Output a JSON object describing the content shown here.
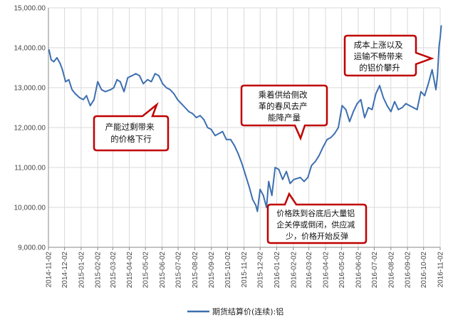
{
  "chart_data": {
    "type": "line",
    "title": "",
    "xlabel": "",
    "ylabel": "",
    "ylim": [
      9000,
      15000
    ],
    "y_ticks": [
      "9,000.00",
      "10,000.00",
      "11,000.00",
      "12,000.00",
      "13,000.00",
      "14,000.00",
      "15,000.00"
    ],
    "y_tick_values": [
      9000,
      10000,
      11000,
      12000,
      13000,
      14000,
      15000
    ],
    "x_ticks": [
      "2014-11-02",
      "2014-12-02",
      "2015-01-02",
      "2015-02-02",
      "2015-03-02",
      "2015-04-02",
      "2015-05-02",
      "2015-06-02",
      "2015-07-02",
      "2015-08-02",
      "2015-09-02",
      "2015-10-02",
      "2015-11-02",
      "2015-12-02",
      "2016-01-02",
      "2016-02-02",
      "2016-03-02",
      "2016-04-02",
      "2016-05-02",
      "2016-06-02",
      "2016-07-02",
      "2016-08-02",
      "2016-09-02",
      "2016-10-02",
      "2016-11-02"
    ],
    "grid": true,
    "legend_position": "bottom",
    "series": [
      {
        "name": "期货结算价(连续):铝",
        "color": "#3d6fb0",
        "x": [
          "2014-11-03",
          "2014-11-07",
          "2014-11-12",
          "2014-11-18",
          "2014-11-24",
          "2014-11-28",
          "2014-12-04",
          "2014-12-10",
          "2014-12-16",
          "2014-12-22",
          "2014-12-30",
          "2015-01-06",
          "2015-01-12",
          "2015-01-19",
          "2015-01-26",
          "2015-02-02",
          "2015-02-09",
          "2015-02-16",
          "2015-02-26",
          "2015-03-04",
          "2015-03-10",
          "2015-03-16",
          "2015-03-23",
          "2015-03-30",
          "2015-04-07",
          "2015-04-14",
          "2015-04-21",
          "2015-04-28",
          "2015-05-06",
          "2015-05-13",
          "2015-05-20",
          "2015-05-27",
          "2015-06-03",
          "2015-06-10",
          "2015-06-17",
          "2015-06-24",
          "2015-07-01",
          "2015-07-08",
          "2015-07-15",
          "2015-07-22",
          "2015-07-29",
          "2015-08-05",
          "2015-08-12",
          "2015-08-19",
          "2015-08-26",
          "2015-09-02",
          "2015-09-09",
          "2015-09-16",
          "2015-09-23",
          "2015-09-30",
          "2015-10-08",
          "2015-10-15",
          "2015-10-22",
          "2015-10-29",
          "2015-11-05",
          "2015-11-12",
          "2015-11-18",
          "2015-11-24",
          "2015-11-27",
          "2015-12-02",
          "2015-12-08",
          "2015-12-14",
          "2015-12-18",
          "2015-12-24",
          "2015-12-30",
          "2016-01-06",
          "2016-01-13",
          "2016-01-20",
          "2016-01-27",
          "2016-02-03",
          "2016-02-15",
          "2016-02-22",
          "2016-02-29",
          "2016-03-07",
          "2016-03-14",
          "2016-03-21",
          "2016-03-28",
          "2016-04-05",
          "2016-04-12",
          "2016-04-19",
          "2016-04-26",
          "2016-05-03",
          "2016-05-10",
          "2016-05-17",
          "2016-05-24",
          "2016-05-31",
          "2016-06-07",
          "2016-06-14",
          "2016-06-21",
          "2016-06-28",
          "2016-07-05",
          "2016-07-12",
          "2016-07-19",
          "2016-07-26",
          "2016-08-02",
          "2016-08-09",
          "2016-08-16",
          "2016-08-23",
          "2016-08-30",
          "2016-09-06",
          "2016-09-13",
          "2016-09-20",
          "2016-09-27",
          "2016-10-04",
          "2016-10-11",
          "2016-10-18",
          "2016-10-25",
          "2016-10-28",
          "2016-10-31",
          "2016-11-02",
          "2016-11-04"
        ],
        "values": [
          13950,
          13700,
          13650,
          13750,
          13600,
          13450,
          13150,
          13200,
          12950,
          12850,
          12750,
          12700,
          12800,
          12550,
          12700,
          13150,
          12950,
          12900,
          12950,
          13000,
          13200,
          13150,
          12900,
          13250,
          13300,
          13350,
          13300,
          13100,
          13200,
          13150,
          13350,
          13300,
          13100,
          13000,
          12950,
          12850,
          12700,
          12600,
          12500,
          12400,
          12350,
          12250,
          12300,
          12200,
          12000,
          11950,
          11800,
          11850,
          11900,
          11700,
          11700,
          11550,
          11350,
          11100,
          10800,
          10500,
          10200,
          10050,
          9900,
          10450,
          10300,
          10000,
          10650,
          10300,
          11000,
          10950,
          10700,
          10900,
          10600,
          10700,
          10750,
          10650,
          10750,
          11050,
          11150,
          11300,
          11500,
          11700,
          11750,
          11850,
          12000,
          12550,
          12450,
          12150,
          12400,
          12600,
          12700,
          12250,
          12500,
          12450,
          12850,
          13050,
          12750,
          12550,
          12400,
          12650,
          12450,
          12500,
          12600,
          12550,
          12500,
          12450,
          12900,
          12800,
          13100,
          13450,
          12950,
          13300,
          14050,
          14250,
          14550
        ]
      }
    ],
    "annotations": [
      {
        "lines": [
          "产能过剩带来",
          "的价格下行"
        ]
      },
      {
        "lines": [
          "乘着供给侧改",
          "革的春风去产",
          "能降产量"
        ]
      },
      {
        "lines": [
          "成本上涨以及",
          "运输不畅带来",
          "的铝价攀升"
        ]
      },
      {
        "lines": [
          "价格跌到谷底后大量铝",
          "企关停或倒闭，供应减",
          "少，价格开始反弹"
        ]
      }
    ]
  }
}
